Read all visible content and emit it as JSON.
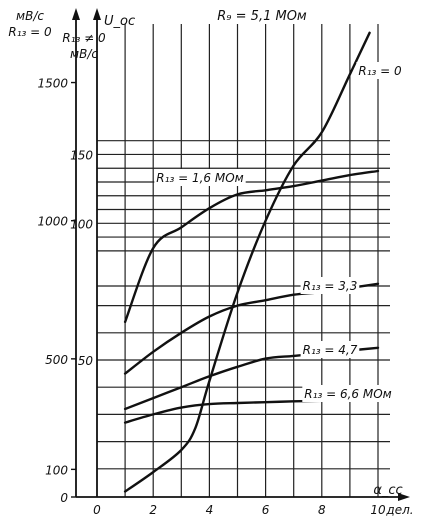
{
  "chart_data": {
    "type": "line",
    "title": "R₉ = 5,1 МОм",
    "xlabel": "α_cc",
    "x_unit": "дел.",
    "xlim": [
      0,
      10
    ],
    "x_ticks": [
      "0",
      "2",
      "4",
      "6",
      "8",
      "10"
    ],
    "left_axis": {
      "unit": "мВ/с",
      "condition": "R₁₃ = 0",
      "ticks": [
        {
          "value": 1500,
          "label": "1500"
        },
        {
          "value": 1000,
          "label": "1000"
        },
        {
          "value": 500,
          "label": "500"
        },
        {
          "value": 100,
          "label": "100"
        },
        {
          "value": 0,
          "label": "0"
        }
      ]
    },
    "right_axis": {
      "symbol": "U_oc",
      "condition": "R₁₃ ≠ 0",
      "unit": "мВ/с",
      "ticks": [
        {
          "value": 150,
          "label": "150"
        },
        {
          "value": 100,
          "label": "100"
        },
        {
          "value": 50,
          "label": "50"
        }
      ]
    },
    "series": [
      {
        "name": "R₁₃ = 0",
        "axis": "left",
        "label": "R₁₃ = 0",
        "x": [
          1,
          2,
          3,
          3.5,
          4,
          5,
          6,
          7,
          8,
          9,
          9.7
        ],
        "y": [
          20,
          90,
          170,
          250,
          420,
          740,
          1000,
          1200,
          1320,
          1530,
          1680
        ]
      },
      {
        "name": "R₁₃ = 1,6 МОм",
        "axis": "right",
        "label": "R₁₃ = 1,6 МОм",
        "x": [
          1,
          2,
          3,
          4,
          5,
          6,
          7,
          8,
          9,
          10
        ],
        "y": [
          64,
          82,
          97,
          111,
          121,
          124,
          127,
          131,
          135,
          138
        ]
      },
      {
        "name": "R₁₃ = 3,3",
        "axis": "right",
        "label": "R₁₃ = 3,3",
        "x": [
          1,
          2,
          3,
          4,
          5,
          6,
          7,
          8,
          9,
          10
        ],
        "y": [
          45,
          53,
          60,
          66,
          70,
          72,
          74,
          75,
          76.5,
          78
        ]
      },
      {
        "name": "R₁₃ = 4,7",
        "axis": "right",
        "label": "R₁₃ = 4,7",
        "x": [
          1,
          2,
          3,
          4,
          5,
          6,
          7,
          8,
          9,
          10
        ],
        "y": [
          32,
          36,
          40,
          44,
          47.5,
          50.5,
          51.5,
          52.5,
          53.5,
          54.5
        ]
      },
      {
        "name": "R₁₃ = 6,6 МОм",
        "axis": "right",
        "label": "R₁₃ = 6,6 МОм",
        "x": [
          1,
          2,
          3,
          4,
          5,
          6,
          7,
          8,
          9,
          10
        ],
        "y": [
          27,
          30,
          32.5,
          33.8,
          34.2,
          34.5,
          34.8,
          35.0,
          35.2,
          35.5
        ]
      }
    ],
    "grid": true
  }
}
